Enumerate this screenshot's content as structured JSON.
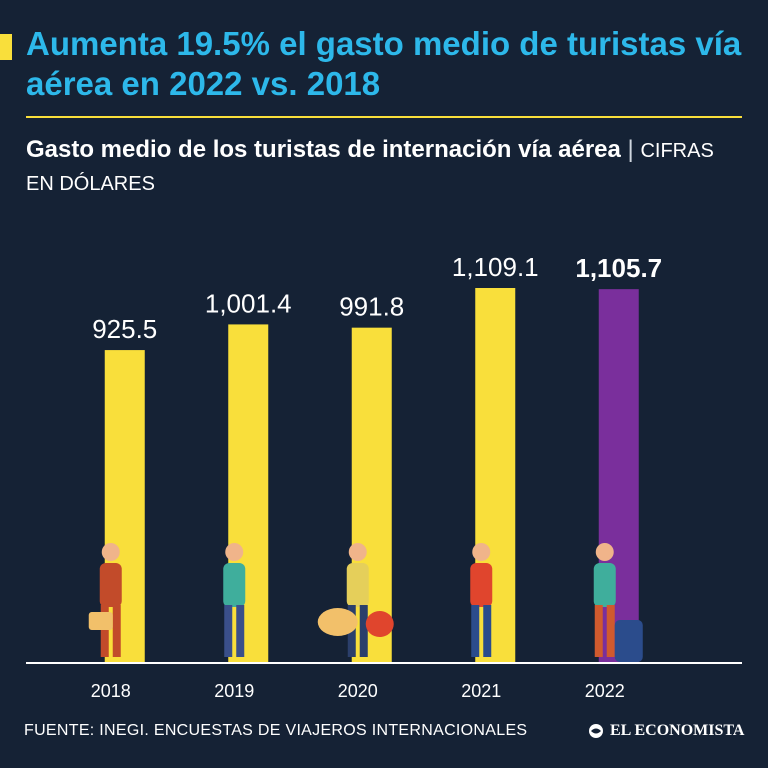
{
  "header": {
    "headline": "Aumenta 19.5% el gasto medio de turistas vía aérea en 2022 vs. 2018",
    "subtitle": "Gasto medio de los turistas de internación vía aérea",
    "separator": "|",
    "unit": "CIFRAS EN DÓLARES"
  },
  "chart_data": {
    "type": "bar",
    "title": "Gasto medio de los turistas de internación vía aérea",
    "ylabel": "CIFRAS EN DÓLARES",
    "xlabel": "",
    "categories": [
      "2018",
      "2019",
      "2020",
      "2021",
      "2022"
    ],
    "values": [
      925.5,
      1001.4,
      991.8,
      1109.1,
      1105.7
    ],
    "labels": [
      "925.5",
      "1,001.4",
      "991.8",
      "1,109.1",
      "1,105.7"
    ],
    "highlight": "2022",
    "ylim": [
      0,
      1109.1
    ],
    "grid": false,
    "colors": {
      "default": "#f9df3b",
      "highlight": "#7a2f9c"
    }
  },
  "colors": {
    "background": "#152235",
    "headline": "#2db8ea",
    "accent": "#f9df3b",
    "text": "#ffffff"
  },
  "footer": {
    "source": "FUENTE: INEGI. ENCUESTAS DE VIAJEROS INTERNACIONALES",
    "brand": "EL ECONOMISTA",
    "brand_icon": "globe-icon"
  }
}
